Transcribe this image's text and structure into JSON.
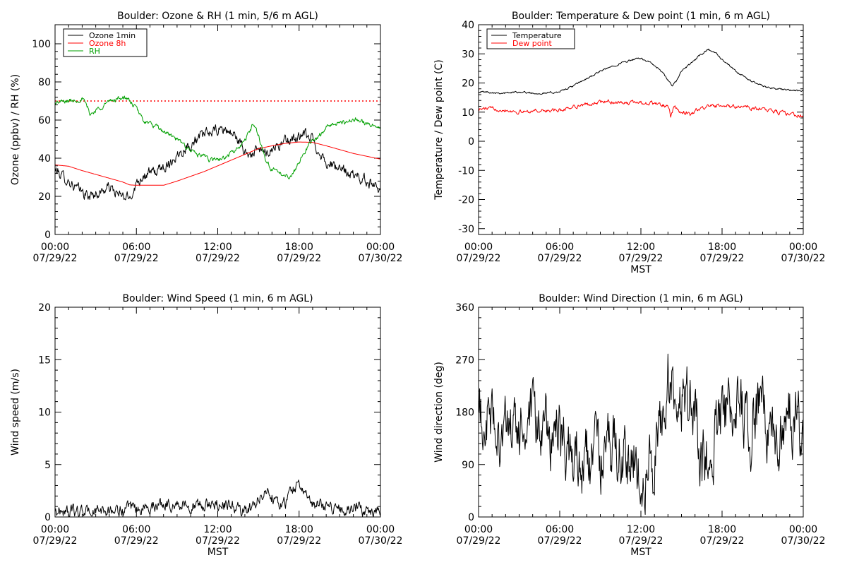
{
  "chart_data": [
    {
      "id": "ozone",
      "type": "line",
      "title": "Boulder: Ozone & RH (1 min, 5/6 m AGL)",
      "xlabel": "",
      "ylabel": "Ozone (ppbv) / RH (%)",
      "xlim": [
        0,
        24
      ],
      "ylim": [
        0,
        110
      ],
      "yticks": [
        0,
        20,
        40,
        60,
        80,
        100
      ],
      "xtick_labels": [
        [
          "00:00",
          "07/29/22"
        ],
        [
          "06:00",
          "07/29/22"
        ],
        [
          "12:00",
          "07/29/22"
        ],
        [
          "18:00",
          "07/29/22"
        ],
        [
          "00:00",
          "07/30/22"
        ]
      ],
      "reference_line": {
        "y": 70,
        "color": "#ff0000",
        "style": "dotted"
      },
      "legend_position": "top-left",
      "series": [
        {
          "name": "Ozone 1min",
          "color": "#000000",
          "noise": 2.2,
          "x": [
            0,
            1,
            1.8,
            2.5,
            3.3,
            4,
            4.8,
            5.5,
            6,
            6.5,
            7.5,
            8.5,
            9.5,
            10.5,
            11.5,
            12.5,
            13.3,
            14,
            14.5,
            15,
            15.5,
            16.5,
            17.5,
            18.5,
            19,
            19.5,
            20,
            20.5,
            21,
            22,
            23,
            24
          ],
          "values": [
            34,
            28,
            23,
            20,
            22,
            25,
            20,
            19,
            27,
            31,
            33,
            38,
            45,
            50,
            54,
            55,
            52,
            43,
            42,
            44,
            43,
            47,
            50,
            52,
            50,
            43,
            38,
            36,
            34,
            31,
            28,
            25
          ]
        },
        {
          "name": "Ozone 8h",
          "color": "#ff0000",
          "noise": 0,
          "x": [
            0,
            1,
            2,
            3,
            4,
            5,
            5.5,
            6,
            7,
            8,
            9,
            10,
            11,
            12,
            13,
            14,
            15,
            16,
            17,
            18,
            19,
            20,
            21,
            22,
            23,
            24
          ],
          "values": [
            36.5,
            35.8,
            33.5,
            31.5,
            29.5,
            27.5,
            26,
            25.8,
            25.8,
            25.8,
            28,
            30.5,
            33,
            36,
            39,
            42,
            45,
            46.5,
            47.8,
            48.5,
            48.3,
            46.5,
            44.5,
            42.5,
            41,
            39.5
          ]
        },
        {
          "name": "RH",
          "color": "#00a000",
          "noise": 1.0,
          "x": [
            0,
            1,
            2,
            2.3,
            2.6,
            3.2,
            3.8,
            4.5,
            5,
            5.5,
            6,
            6.5,
            7.5,
            8.5,
            9.5,
            10.5,
            11.5,
            12.5,
            13.3,
            13.8,
            14.2,
            14.6,
            15,
            15.5,
            16,
            16.5,
            17,
            17.5,
            18,
            18.5,
            19,
            19.5,
            20,
            20.5,
            21,
            21.5,
            22,
            22.5,
            23,
            24
          ],
          "values": [
            69,
            70,
            71,
            68,
            63,
            66,
            69,
            71,
            72,
            70,
            66,
            60,
            56,
            52,
            47,
            42,
            39,
            40,
            44,
            47,
            52,
            58,
            52,
            40,
            34,
            32,
            31,
            31,
            38,
            45,
            49,
            52,
            56,
            58,
            59,
            58,
            61,
            60,
            58,
            56
          ]
        }
      ]
    },
    {
      "id": "temp",
      "type": "line",
      "title": "Boulder: Temperature & Dew point (1 min, 6 m AGL)",
      "xlabel": "MST",
      "ylabel": "Temperature / Dew point (C)",
      "xlim": [
        0,
        24
      ],
      "ylim": [
        -32,
        40
      ],
      "yticks": [
        -30,
        -20,
        -10,
        0,
        10,
        20,
        30,
        40
      ],
      "xtick_labels": [
        [
          "00:00",
          "07/29/22"
        ],
        [
          "06:00",
          "07/29/22"
        ],
        [
          "12:00",
          "07/29/22"
        ],
        [
          "18:00",
          "07/29/22"
        ],
        [
          "00:00",
          "07/30/22"
        ]
      ],
      "legend_position": "top-left",
      "series": [
        {
          "name": "Temperature",
          "color": "#000000",
          "noise": 0.25,
          "x": [
            0,
            1,
            2,
            3,
            4,
            5,
            6,
            7,
            8,
            9,
            10,
            11,
            12,
            12.5,
            13,
            13.5,
            14,
            14.3,
            14.6,
            15,
            15.5,
            16,
            16.5,
            17,
            17.5,
            18,
            18.5,
            19,
            20,
            21,
            22,
            23,
            24
          ],
          "values": [
            17,
            16.8,
            16.5,
            17,
            16.5,
            16.5,
            17,
            19,
            21.5,
            24,
            26,
            27.5,
            28.5,
            27.5,
            26,
            24,
            21,
            19,
            20.5,
            24,
            26,
            28,
            30,
            31.5,
            30.5,
            28,
            26,
            24,
            21,
            19,
            18,
            17.5,
            17.2
          ]
        },
        {
          "name": "Dew point",
          "color": "#ff0000",
          "noise": 0.5,
          "x": [
            0,
            1,
            2,
            3,
            4,
            5,
            6,
            7,
            8,
            9,
            10,
            11,
            12,
            12.5,
            13,
            13.5,
            14,
            14.2,
            14.5,
            14.8,
            15.2,
            15.7,
            16.2,
            17,
            18,
            19,
            20,
            21,
            22,
            23,
            24
          ],
          "values": [
            11,
            11.2,
            10.8,
            10,
            10.5,
            10.5,
            10.5,
            12,
            12.5,
            13.5,
            13.5,
            13,
            13.5,
            13,
            13,
            12.5,
            12,
            8.5,
            12,
            10,
            10,
            9,
            11,
            12,
            12,
            12,
            11.5,
            11,
            10,
            9.5,
            8.5
          ]
        }
      ]
    },
    {
      "id": "wspd",
      "type": "line",
      "title": "Boulder: Wind Speed (1 min, 6 m AGL)",
      "xlabel": "MST",
      "ylabel": "Wind speed (m/s)",
      "xlim": [
        0,
        24
      ],
      "ylim": [
        0,
        20
      ],
      "yticks": [
        0,
        5,
        10,
        15,
        20
      ],
      "xtick_labels": [
        [
          "00:00",
          "07/29/22"
        ],
        [
          "06:00",
          "07/29/22"
        ],
        [
          "12:00",
          "07/29/22"
        ],
        [
          "18:00",
          "07/29/22"
        ],
        [
          "00:00",
          "07/30/22"
        ]
      ],
      "series": [
        {
          "name": "",
          "color": "#000000",
          "noise": 0.45,
          "x": [
            0,
            2,
            4,
            6,
            7,
            8,
            9,
            10,
            11,
            12,
            13,
            14,
            14.5,
            15,
            15.5,
            16,
            16.5,
            17,
            17.5,
            18,
            18.5,
            19,
            20,
            21,
            22,
            23,
            24
          ],
          "values": [
            0.6,
            0.5,
            0.6,
            0.7,
            1.0,
            1.3,
            1.2,
            1.1,
            1.0,
            1.3,
            1.1,
            0.5,
            0.8,
            1.8,
            2.4,
            2.0,
            1.5,
            1.2,
            2.8,
            3.2,
            2.0,
            1.2,
            1.0,
            0.9,
            0.7,
            0.6,
            0.6
          ]
        }
      ]
    },
    {
      "id": "wdir",
      "type": "line",
      "title": "Boulder: Wind Direction (1 min, 6 m AGL)",
      "xlabel": "MST",
      "ylabel": "Wind direction (deg)",
      "xlim": [
        0,
        24
      ],
      "ylim": [
        0,
        360
      ],
      "yticks": [
        0,
        90,
        180,
        270,
        360
      ],
      "xtick_labels": [
        [
          "00:00",
          "07/29/22"
        ],
        [
          "06:00",
          "07/29/22"
        ],
        [
          "12:00",
          "07/29/22"
        ],
        [
          "18:00",
          "07/29/22"
        ],
        [
          "00:00",
          "07/30/22"
        ]
      ],
      "series": [
        {
          "name": "",
          "color": "#000000",
          "noise": 45,
          "x": [
            0,
            1,
            2,
            3,
            4,
            5,
            6,
            7,
            8,
            9,
            10,
            11,
            12,
            13,
            14,
            15,
            16,
            16.5,
            17,
            18,
            19,
            20,
            21,
            22,
            23,
            24
          ],
          "values": [
            170,
            160,
            140,
            150,
            150,
            150,
            140,
            100,
            95,
            100,
            120,
            110,
            80,
            90,
            240,
            200,
            190,
            90,
            125,
            170,
            180,
            165,
            175,
            150,
            170,
            160
          ]
        }
      ]
    }
  ]
}
